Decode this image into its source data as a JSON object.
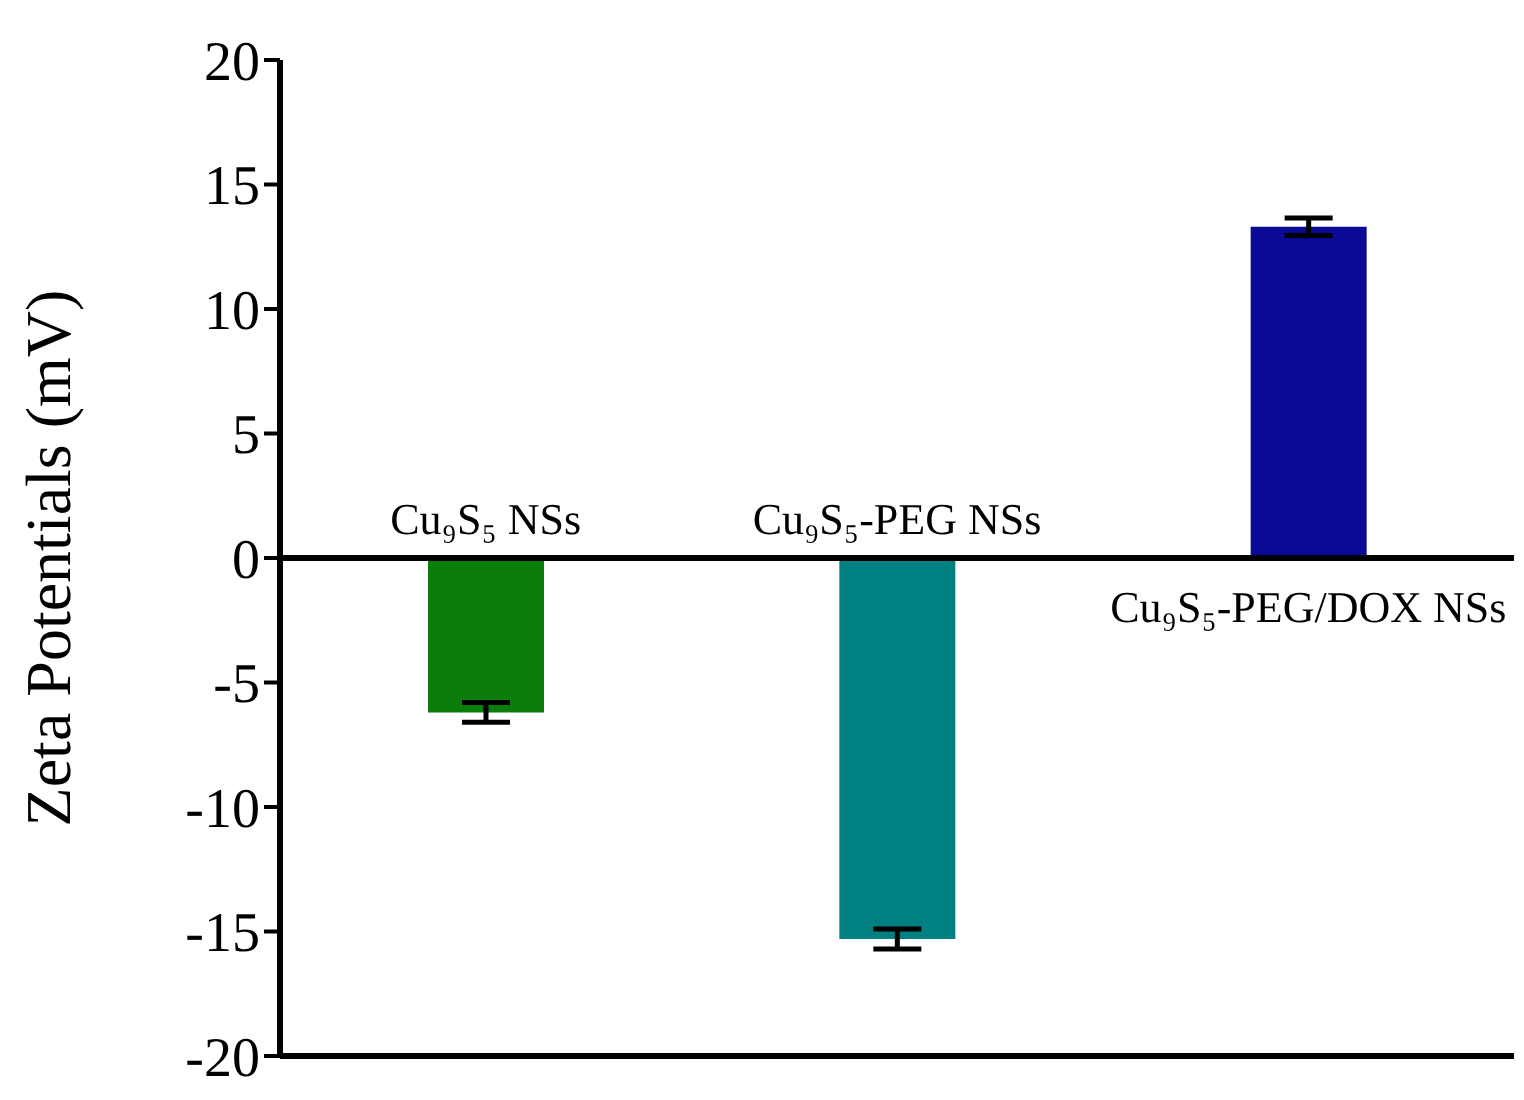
{
  "chart_data": {
    "type": "bar",
    "ylabel": "Zeta Potentials (mV)",
    "categories": [
      "Cu₉S₅ NSs",
      "Cu₉S₅-PEG NSs",
      "Cu₉S₅-PEG/DOX NSs"
    ],
    "values": [
      -6.2,
      -15.3,
      13.3
    ],
    "errors": [
      0.4,
      0.4,
      0.35
    ],
    "colors": [
      "#0a7d0a",
      "#008080",
      "#0a0a96"
    ],
    "ylim": [
      -20,
      20
    ],
    "yticks": [
      -20,
      -15,
      -10,
      -5,
      0,
      5,
      10,
      15,
      20
    ],
    "legend": false,
    "grid": false
  }
}
